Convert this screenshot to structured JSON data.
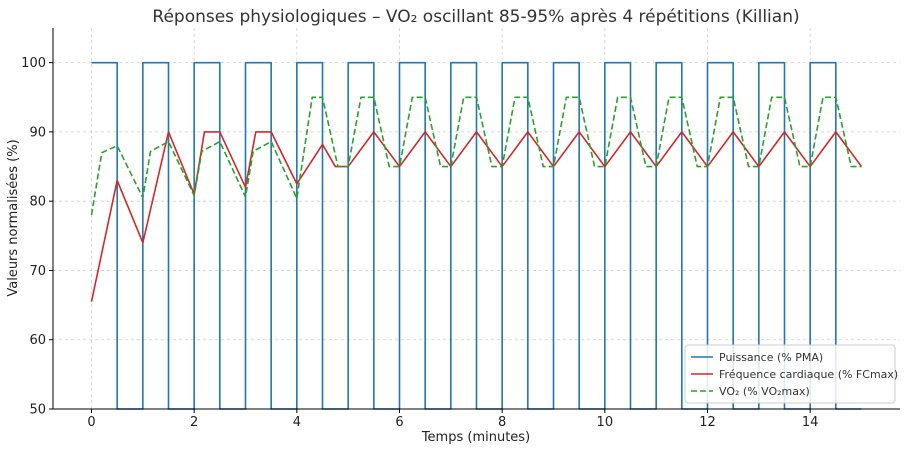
{
  "chart_data": {
    "type": "line",
    "title": "Réponses physiologiques – VO₂ oscillant 85-95% après 4 répétitions (Killian)",
    "xlabel": "Temps (minutes)",
    "ylabel": "Valeurs normalisées (%)",
    "xlim": [
      -0.75,
      15.75
    ],
    "ylim": [
      50,
      105
    ],
    "xticks": [
      0,
      2,
      4,
      6,
      8,
      10,
      12,
      14
    ],
    "yticks": [
      50,
      60,
      70,
      80,
      90,
      100
    ],
    "grid": true,
    "legend_position": "lower-right",
    "series": [
      {
        "name": "Puissance (% PMA)",
        "color": "#1f77b4",
        "style": "solid",
        "x": [
          0,
          0.5,
          0.5,
          1,
          1,
          1.5,
          1.5,
          2,
          2,
          2.5,
          2.5,
          3,
          3,
          3.5,
          3.5,
          4,
          4,
          4.5,
          4.5,
          5,
          5,
          5.5,
          5.5,
          6,
          6,
          6.5,
          6.5,
          7,
          7,
          7.5,
          7.5,
          8,
          8,
          8.5,
          8.5,
          9,
          9,
          9.5,
          9.5,
          10,
          10,
          10.5,
          10.5,
          11,
          11,
          11.5,
          11.5,
          12,
          12,
          12.5,
          12.5,
          13,
          13,
          13.5,
          13.5,
          14,
          14,
          14.5,
          14.5,
          15
        ],
        "y": [
          100,
          100,
          50,
          50,
          100,
          100,
          50,
          50,
          100,
          100,
          50,
          50,
          100,
          100,
          50,
          50,
          100,
          100,
          50,
          50,
          100,
          100,
          50,
          50,
          100,
          100,
          50,
          50,
          100,
          100,
          50,
          50,
          100,
          100,
          50,
          50,
          100,
          100,
          50,
          50,
          100,
          100,
          50,
          50,
          100,
          100,
          50,
          50,
          100,
          100,
          50,
          50,
          100,
          100,
          50,
          50,
          100,
          100,
          50,
          50
        ]
      },
      {
        "name": "Fréquence cardiaque (% FCmax)",
        "color": "#d62728",
        "style": "solid",
        "x": [
          0,
          0.5,
          1,
          1.5,
          2,
          2.2,
          2.5,
          3,
          3.2,
          3.5,
          4,
          4.5,
          4.75,
          5,
          5.5,
          6,
          6.5,
          7,
          7.5,
          8,
          8.5,
          9,
          9.5,
          10,
          10.5,
          11,
          11.5,
          12,
          12.5,
          13,
          13.5,
          14,
          14.5,
          15
        ],
        "y": [
          65.5,
          83,
          74,
          90,
          81,
          90,
          90,
          82,
          90,
          90,
          82.5,
          88.2,
          85,
          85,
          90,
          85,
          90,
          85,
          90,
          85,
          90,
          85,
          90,
          85,
          90,
          85,
          90,
          85,
          90,
          85,
          90,
          85,
          90,
          85
        ]
      },
      {
        "name": "VO₂ (% VO₂max)",
        "color": "#2ca02c",
        "style": "dashed",
        "x": [
          0,
          0.2,
          0.5,
          1,
          1.15,
          1.5,
          2,
          2.15,
          2.5,
          3,
          3.15,
          3.5,
          4,
          4.3,
          4.5,
          4.8,
          5,
          5.25,
          5.5,
          5.8,
          6,
          6.25,
          6.5,
          6.8,
          7,
          7.25,
          7.5,
          7.8,
          8,
          8.25,
          8.5,
          8.8,
          9,
          9.25,
          9.5,
          9.8,
          10,
          10.25,
          10.5,
          10.8,
          11,
          11.25,
          11.5,
          11.8,
          12,
          12.25,
          12.5,
          12.8,
          13,
          13.25,
          13.5,
          13.8,
          14,
          14.25,
          14.5,
          14.8,
          15
        ],
        "y": [
          78,
          87,
          88,
          80.5,
          87.2,
          88.6,
          80.8,
          87.2,
          88.6,
          80.6,
          87.2,
          88.6,
          80.4,
          95,
          95,
          85,
          85,
          95,
          95,
          85,
          85,
          95,
          95,
          85,
          85,
          95,
          95,
          85,
          85,
          95,
          95,
          85,
          85,
          95,
          95,
          85,
          85,
          95,
          95,
          85,
          85,
          95,
          95,
          85,
          85,
          95,
          95,
          85,
          85,
          95,
          95,
          85,
          85,
          95,
          95,
          85,
          85
        ]
      }
    ]
  }
}
